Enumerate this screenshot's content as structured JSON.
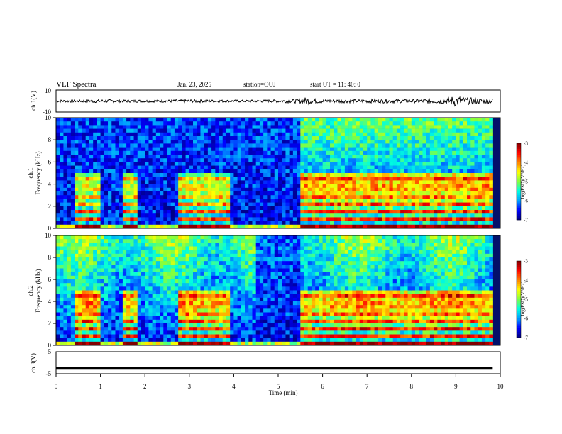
{
  "header": {
    "title": "VLF Spectra",
    "date": "Jan. 23, 2025",
    "station": "station=OUJ",
    "start": "start UT =  11: 40: 0"
  },
  "colors": {
    "colormap": [
      "#000080",
      "#0000ff",
      "#00a0ff",
      "#00ffe0",
      "#80ff40",
      "#ffff00",
      "#ff8000",
      "#ff0000",
      "#800000"
    ]
  },
  "chart_data": [
    {
      "id": "ch1-waveform",
      "type": "line",
      "ylabel": "ch.1(V)",
      "ylim": [
        -10,
        10
      ],
      "yticks": [
        "10",
        "-10"
      ],
      "xlim": [
        0,
        10
      ],
      "x": [
        0,
        0.5,
        1,
        1.5,
        2,
        2.5,
        3,
        3.5,
        4,
        4.5,
        5,
        5.5,
        5.6,
        5.8,
        6,
        6.5,
        7,
        7.5,
        8,
        8.5,
        8.8,
        9,
        9.2,
        9.5,
        9.83
      ],
      "amplitude": [
        1.2,
        1.2,
        1.6,
        1.2,
        1.1,
        1.2,
        1.5,
        1.2,
        1.1,
        1.1,
        1.3,
        2.0,
        3.5,
        2.0,
        1.8,
        1.6,
        1.6,
        1.8,
        1.7,
        2.0,
        3.0,
        5.5,
        3.5,
        2.5,
        2.2
      ]
    },
    {
      "id": "ch1-spectrogram",
      "type": "heatmap",
      "ylabel_line1": "ch.1",
      "ylabel_line2": "Frequency (kHz)",
      "ylim": [
        0,
        10
      ],
      "yticks": [
        "0",
        "2",
        "4",
        "6",
        "8",
        "10"
      ],
      "xlim": [
        0,
        10
      ],
      "colorbar": {
        "label": "log(PSD)(V²/Hz)",
        "range": [
          -7,
          -3
        ],
        "ticks": [
          "-3",
          "-4",
          "-5",
          "-6",
          "-7"
        ]
      }
    },
    {
      "id": "ch2-spectrogram",
      "type": "heatmap",
      "ylabel_line1": "ch.2",
      "ylabel_line2": "Frequency (kHz)",
      "ylim": [
        0,
        10
      ],
      "yticks": [
        "0",
        "2",
        "4",
        "6",
        "8",
        "10"
      ],
      "xlim": [
        0,
        10
      ],
      "colorbar": {
        "label": "log(PSD)(V²/Hz)",
        "range": [
          -7,
          -3
        ],
        "ticks": [
          "-3",
          "-4",
          "-5",
          "-6",
          "-7"
        ]
      }
    },
    {
      "id": "ch3-waveform",
      "type": "line",
      "ylabel": "ch.3(V)",
      "ylim": [
        -5,
        5
      ],
      "yticks": [
        "5",
        "-5"
      ],
      "xlim": [
        0,
        10
      ],
      "x": [
        0,
        9.83
      ],
      "y": [
        -2.5,
        -2.5
      ]
    }
  ],
  "time_axis": {
    "label": "Time (min)",
    "ticks": [
      "0",
      "1",
      "2",
      "3",
      "4",
      "5",
      "6",
      "7",
      "8",
      "9",
      "10"
    ]
  }
}
